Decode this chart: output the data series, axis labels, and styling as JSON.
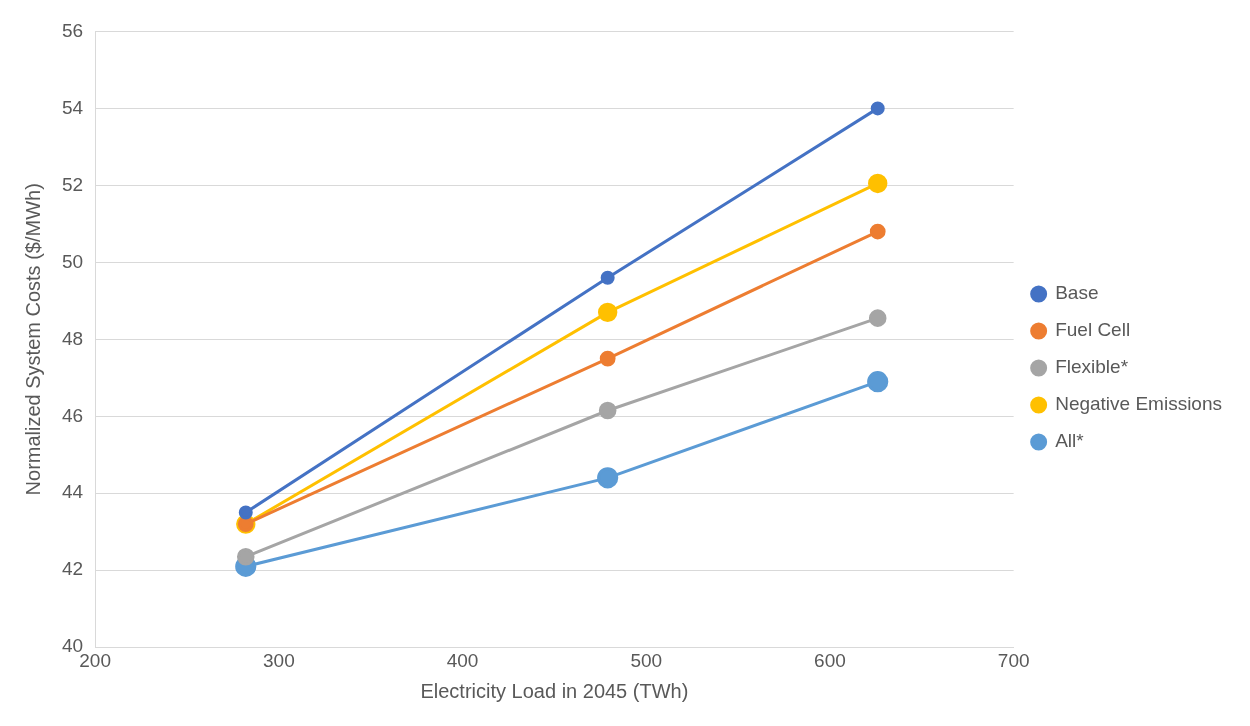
{
  "chart_data": {
    "type": "line",
    "xlabel": "Electricity Load in 2045 (TWh)",
    "ylabel": "Normalized System Costs ($/MWh)",
    "x": [
      282,
      479,
      626
    ],
    "series": [
      {
        "name": "Base",
        "color": "#4472c4",
        "values": [
          43.5,
          49.6,
          54.0
        ]
      },
      {
        "name": "Fuel Cell",
        "color": "#ed7d31",
        "values": [
          43.2,
          47.5,
          50.8
        ]
      },
      {
        "name": "Flexible*",
        "color": "#a5a5a5",
        "values": [
          42.35,
          46.15,
          48.55
        ]
      },
      {
        "name": "Negative Emissions",
        "color": "#ffc000",
        "values": [
          43.2,
          48.7,
          52.05
        ]
      },
      {
        "name": "All*",
        "color": "#5b9bd5",
        "values": [
          42.1,
          44.4,
          46.9
        ]
      }
    ],
    "xlim": [
      200,
      700
    ],
    "xticks": [
      200,
      300,
      400,
      500,
      600,
      700
    ],
    "ylim": [
      40,
      56
    ],
    "yticks": [
      40,
      42,
      44,
      46,
      48,
      50,
      52,
      54,
      56
    ],
    "grid": "y",
    "legend": "right",
    "marker": "circle",
    "line_style": "solid"
  }
}
